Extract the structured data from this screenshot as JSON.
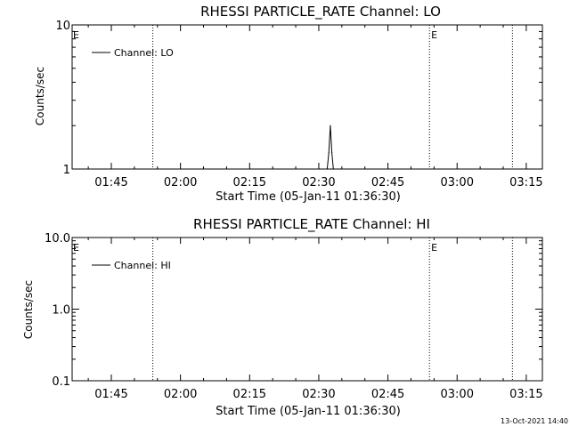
{
  "footer_timestamp": "13-Oct-2021 14:40",
  "chart_data": [
    {
      "type": "line",
      "title": "RHESSI PARTICLE_RATE Channel: LO",
      "xlabel": "Start Time (05-Jan-11 01:36:30)",
      "ylabel": "Counts/sec",
      "yscale": "log",
      "ylim": [
        1,
        10
      ],
      "yticks": [
        {
          "value": 1,
          "label": "1"
        },
        {
          "value": 10,
          "label": "10"
        }
      ],
      "xlim": [
        "01:36:30",
        "03:18:30"
      ],
      "xticks": [
        "01:45",
        "02:00",
        "02:15",
        "02:30",
        "02:45",
        "03:00",
        "03:15"
      ],
      "grid": false,
      "legend": "top-left",
      "series": [
        {
          "name": "Channel: LO",
          "color": "#000000",
          "points": [
            {
              "t": "02:31:50",
              "y": 1
            },
            {
              "t": "02:32:10",
              "y": 1.3
            },
            {
              "t": "02:32:30",
              "y": 2.0
            },
            {
              "t": "02:32:50",
              "y": 1.3
            },
            {
              "t": "02:33:10",
              "y": 1
            }
          ]
        }
      ],
      "markers": [
        {
          "t": "01:54:00",
          "label": ""
        },
        {
          "t": "02:54:00",
          "label": "E"
        },
        {
          "t": "03:12:00",
          "label": ""
        }
      ],
      "edge_label": "E"
    },
    {
      "type": "line",
      "title": "RHESSI PARTICLE_RATE Channel: HI",
      "xlabel": "Start Time (05-Jan-11 01:36:30)",
      "ylabel": "Counts/sec",
      "yscale": "log",
      "ylim": [
        0.1,
        10
      ],
      "yticks": [
        {
          "value": 0.1,
          "label": "0.1"
        },
        {
          "value": 1,
          "label": "1.0"
        },
        {
          "value": 10,
          "label": "10.0"
        }
      ],
      "xlim": [
        "01:36:30",
        "03:18:30"
      ],
      "xticks": [
        "01:45",
        "02:00",
        "02:15",
        "02:30",
        "02:45",
        "03:00",
        "03:15"
      ],
      "grid": false,
      "legend": "top-left",
      "series": [
        {
          "name": "Channel: HI",
          "color": "#000000",
          "points": []
        }
      ],
      "markers": [
        {
          "t": "01:54:00",
          "label": ""
        },
        {
          "t": "02:54:00",
          "label": "E"
        },
        {
          "t": "03:12:00",
          "label": ""
        }
      ],
      "edge_label": "E"
    }
  ]
}
